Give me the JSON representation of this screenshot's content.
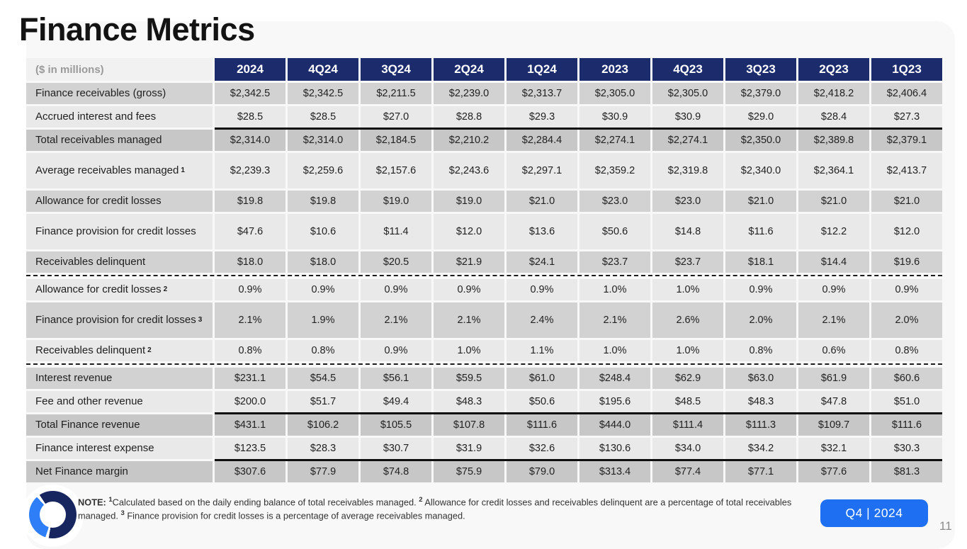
{
  "slide": {
    "title": "Finance Metrics",
    "page_number": "11",
    "period_badge": "Q4 | 2024"
  },
  "colors": {
    "header_navy": "#1b2b6b",
    "accent_blue": "#1e6ff2",
    "logo_navy": "#17265f",
    "logo_blue": "#2e7ef7",
    "row_mid_gray": "#d2d2d2",
    "row_light_gray": "#e9e9e9",
    "row_dark_gray": "#c7c7c7"
  },
  "icons": {
    "logo": "ring-logo"
  },
  "table": {
    "corner_label": "($ in millions)",
    "columns": [
      "2024",
      "4Q24",
      "3Q24",
      "2Q24",
      "1Q24",
      "2023",
      "4Q23",
      "3Q23",
      "2Q23",
      "1Q23"
    ],
    "rows": [
      {
        "label": "Finance receivables (gross)",
        "sup": "",
        "shade": "mid",
        "tall": false,
        "line_above": false,
        "dashed_below": false,
        "values": [
          "$2,342.5",
          "$2,342.5",
          "$2,211.5",
          "$2,239.0",
          "$2,313.7",
          "$2,305.0",
          "$2,305.0",
          "$2,379.0",
          "$2,418.2",
          "$2,406.4"
        ]
      },
      {
        "label": "Accrued interest and fees",
        "sup": "",
        "shade": "light",
        "tall": false,
        "line_above": false,
        "dashed_below": false,
        "values": [
          "$28.5",
          "$28.5",
          "$27.0",
          "$28.8",
          "$29.3",
          "$30.9",
          "$30.9",
          "$29.0",
          "$28.4",
          "$27.3"
        ]
      },
      {
        "label": "Total receivables managed",
        "sup": "",
        "shade": "dark",
        "tall": false,
        "line_above": true,
        "dashed_below": false,
        "values": [
          "$2,314.0",
          "$2,314.0",
          "$2,184.5",
          "$2,210.2",
          "$2,284.4",
          "$2,274.1",
          "$2,274.1",
          "$2,350.0",
          "$2,389.8",
          "$2,379.1"
        ]
      },
      {
        "label": "Average receivables managed",
        "sup": "1",
        "shade": "light",
        "tall": true,
        "line_above": false,
        "dashed_below": false,
        "values": [
          "$2,239.3",
          "$2,259.6",
          "$2,157.6",
          "$2,243.6",
          "$2,297.1",
          "$2,359.2",
          "$2,319.8",
          "$2,340.0",
          "$2,364.1",
          "$2,413.7"
        ]
      },
      {
        "label": "Allowance for credit losses",
        "sup": "",
        "shade": "mid",
        "tall": false,
        "line_above": false,
        "dashed_below": false,
        "values": [
          "$19.8",
          "$19.8",
          "$19.0",
          "$19.0",
          "$21.0",
          "$23.0",
          "$23.0",
          "$21.0",
          "$21.0",
          "$21.0"
        ]
      },
      {
        "label": "Finance provision for credit losses",
        "sup": "",
        "shade": "light",
        "tall": true,
        "line_above": false,
        "dashed_below": false,
        "values": [
          "$47.6",
          "$10.6",
          "$11.4",
          "$12.0",
          "$13.6",
          "$50.6",
          "$14.8",
          "$11.6",
          "$12.2",
          "$12.0"
        ]
      },
      {
        "label": "Receivables delinquent",
        "sup": "",
        "shade": "mid",
        "tall": false,
        "line_above": false,
        "dashed_below": true,
        "values": [
          "$18.0",
          "$18.0",
          "$20.5",
          "$21.9",
          "$24.1",
          "$23.7",
          "$23.7",
          "$18.1",
          "$14.4",
          "$19.6"
        ]
      },
      {
        "label": "Allowance for credit losses",
        "sup": "2",
        "shade": "light",
        "tall": false,
        "line_above": false,
        "dashed_below": false,
        "values": [
          "0.9%",
          "0.9%",
          "0.9%",
          "0.9%",
          "0.9%",
          "1.0%",
          "1.0%",
          "0.9%",
          "0.9%",
          "0.9%"
        ]
      },
      {
        "label": "Finance provision for credit losses",
        "sup": "3",
        "shade": "mid",
        "tall": true,
        "line_above": false,
        "dashed_below": false,
        "values": [
          "2.1%",
          "1.9%",
          "2.1%",
          "2.1%",
          "2.4%",
          "2.1%",
          "2.6%",
          "2.0%",
          "2.1%",
          "2.0%"
        ]
      },
      {
        "label": "Receivables delinquent",
        "sup": "2",
        "shade": "light",
        "tall": false,
        "line_above": false,
        "dashed_below": true,
        "values": [
          "0.8%",
          "0.8%",
          "0.9%",
          "1.0%",
          "1.1%",
          "1.0%",
          "1.0%",
          "0.8%",
          "0.6%",
          "0.8%"
        ]
      },
      {
        "label": "Interest revenue",
        "sup": "",
        "shade": "mid",
        "tall": false,
        "line_above": false,
        "dashed_below": false,
        "values": [
          "$231.1",
          "$54.5",
          "$56.1",
          "$59.5",
          "$61.0",
          "$248.4",
          "$62.9",
          "$63.0",
          "$61.9",
          "$60.6"
        ]
      },
      {
        "label": "Fee and other revenue",
        "sup": "",
        "shade": "light",
        "tall": false,
        "line_above": false,
        "dashed_below": false,
        "values": [
          "$200.0",
          "$51.7",
          "$49.4",
          "$48.3",
          "$50.6",
          "$195.6",
          "$48.5",
          "$48.3",
          "$47.8",
          "$51.0"
        ]
      },
      {
        "label": "Total Finance revenue",
        "sup": "",
        "shade": "dark",
        "tall": false,
        "line_above": true,
        "dashed_below": false,
        "values": [
          "$431.1",
          "$106.2",
          "$105.5",
          "$107.8",
          "$111.6",
          "$444.0",
          "$111.4",
          "$111.3",
          "$109.7",
          "$111.6"
        ]
      },
      {
        "label": "Finance interest expense",
        "sup": "",
        "shade": "light",
        "tall": false,
        "line_above": false,
        "dashed_below": false,
        "values": [
          "$123.5",
          "$28.3",
          "$30.7",
          "$31.9",
          "$32.6",
          "$130.6",
          "$34.0",
          "$34.2",
          "$32.1",
          "$30.3"
        ]
      },
      {
        "label": "Net Finance margin",
        "sup": "",
        "shade": "dark",
        "tall": false,
        "line_above": true,
        "dashed_below": false,
        "values": [
          "$307.6",
          "$77.9",
          "$74.8",
          "$75.9",
          "$79.0",
          "$313.4",
          "$77.4",
          "$77.1",
          "$77.6",
          "$81.3"
        ]
      }
    ]
  },
  "note": {
    "prefix": "NOTE: ",
    "sup1": "1",
    "part1": "Calculated based on the daily ending balance of total receivables managed. ",
    "sup2": "2",
    "part2": " Allowance for credit losses and receivables delinquent are a percentage of total receivables managed. ",
    "sup3": "3",
    "part3": " Finance provision for credit losses is a percentage of average receivables managed."
  }
}
